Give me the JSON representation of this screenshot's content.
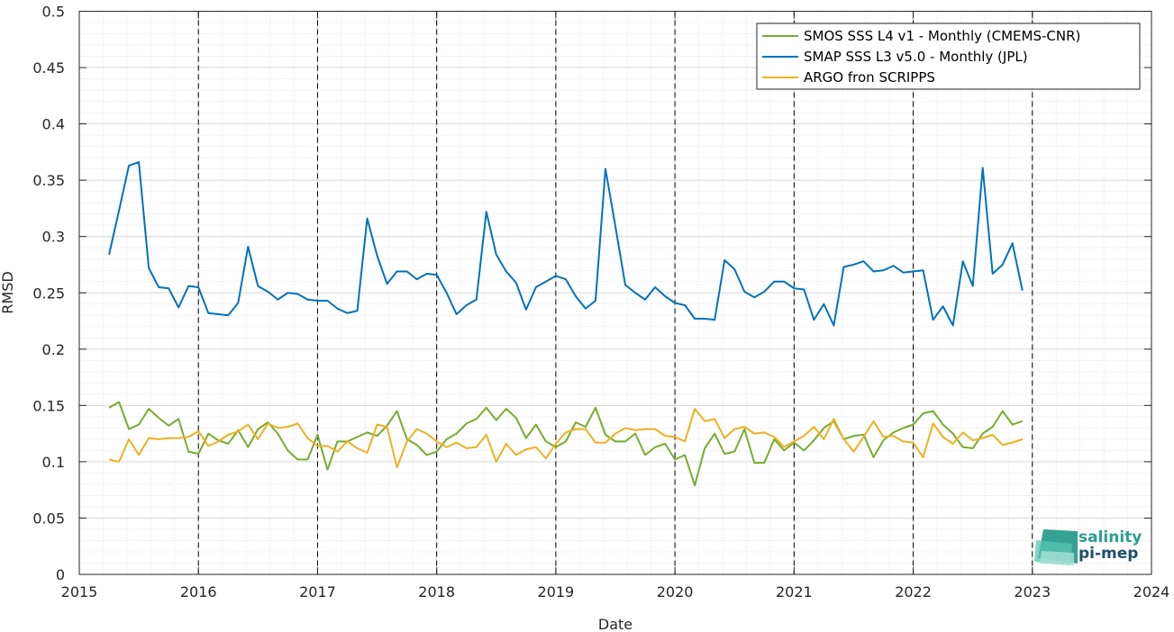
{
  "chart_data": {
    "type": "line",
    "xlabel": "Date",
    "ylabel": "RMSD",
    "xlim": [
      2015,
      2024
    ],
    "ylim": [
      0,
      0.5
    ],
    "x_ticks": [
      "2015",
      "2016",
      "2017",
      "2018",
      "2019",
      "2020",
      "2021",
      "2022",
      "2023",
      "2024"
    ],
    "y_ticks": [
      "0",
      "0.05",
      "0.1",
      "0.15",
      "0.2",
      "0.25",
      "0.3",
      "0.35",
      "0.4",
      "0.45",
      "0.5"
    ],
    "grid": true,
    "legend_position": "top-right",
    "year_markers": [
      "2016",
      "2017",
      "2018",
      "2019",
      "2020",
      "2021",
      "2022",
      "2023"
    ],
    "x": [
      "2015-04",
      "2015-05",
      "2015-06",
      "2015-07",
      "2015-08",
      "2015-09",
      "2015-10",
      "2015-11",
      "2015-12",
      "2016-01",
      "2016-02",
      "2016-03",
      "2016-04",
      "2016-05",
      "2016-06",
      "2016-07",
      "2016-08",
      "2016-09",
      "2016-10",
      "2016-11",
      "2016-12",
      "2017-01",
      "2017-02",
      "2017-03",
      "2017-04",
      "2017-05",
      "2017-06",
      "2017-07",
      "2017-08",
      "2017-09",
      "2017-10",
      "2017-11",
      "2017-12",
      "2018-01",
      "2018-02",
      "2018-03",
      "2018-04",
      "2018-05",
      "2018-06",
      "2018-07",
      "2018-08",
      "2018-09",
      "2018-10",
      "2018-11",
      "2018-12",
      "2019-01",
      "2019-02",
      "2019-03",
      "2019-04",
      "2019-05",
      "2019-06",
      "2019-07",
      "2019-08",
      "2019-09",
      "2019-10",
      "2019-11",
      "2019-12",
      "2020-01",
      "2020-02",
      "2020-03",
      "2020-04",
      "2020-05",
      "2020-06",
      "2020-07",
      "2020-08",
      "2020-09",
      "2020-10",
      "2020-11",
      "2020-12",
      "2021-01",
      "2021-02",
      "2021-03",
      "2021-04",
      "2021-05",
      "2021-06",
      "2021-07",
      "2021-08",
      "2021-09",
      "2021-10",
      "2021-11",
      "2021-12",
      "2022-01",
      "2022-02",
      "2022-03",
      "2022-04",
      "2022-05",
      "2022-06",
      "2022-07",
      "2022-08",
      "2022-09",
      "2022-10",
      "2022-11",
      "2022-12"
    ],
    "series": [
      {
        "name": "SMOS SSS L4 v1 - Monthly (CMEMS-CNR)",
        "color": "#77ac30",
        "values": [
          0.148,
          0.153,
          0.129,
          0.133,
          0.147,
          0.139,
          0.132,
          0.138,
          0.109,
          0.107,
          0.125,
          0.119,
          0.116,
          0.128,
          0.113,
          0.129,
          0.135,
          0.125,
          0.11,
          0.102,
          0.102,
          0.124,
          0.093,
          0.118,
          0.118,
          0.122,
          0.126,
          0.123,
          0.132,
          0.145,
          0.12,
          0.115,
          0.106,
          0.109,
          0.12,
          0.125,
          0.134,
          0.138,
          0.148,
          0.137,
          0.147,
          0.139,
          0.121,
          0.133,
          0.118,
          0.113,
          0.118,
          0.135,
          0.131,
          0.148,
          0.124,
          0.118,
          0.118,
          0.125,
          0.106,
          0.113,
          0.116,
          0.102,
          0.106,
          0.079,
          0.112,
          0.125,
          0.107,
          0.109,
          0.129,
          0.099,
          0.099,
          0.12,
          0.11,
          0.117,
          0.11,
          0.119,
          0.13,
          0.136,
          0.12,
          0.123,
          0.124,
          0.104,
          0.119,
          0.126,
          0.13,
          0.133,
          0.143,
          0.145,
          0.133,
          0.125,
          0.113,
          0.112,
          0.125,
          0.131,
          0.145,
          0.133,
          0.136
        ]
      },
      {
        "name": "SMAP SSS L3 v5.0 - Monthly (JPL)",
        "color": "#0072bd",
        "values": [
          0.284,
          0.323,
          0.363,
          0.366,
          0.272,
          0.255,
          0.254,
          0.237,
          0.256,
          0.255,
          0.232,
          0.231,
          0.23,
          0.241,
          0.291,
          0.256,
          0.251,
          0.244,
          0.25,
          0.249,
          0.244,
          0.243,
          0.243,
          0.236,
          0.232,
          0.234,
          0.316,
          0.283,
          0.258,
          0.269,
          0.269,
          0.262,
          0.267,
          0.266,
          0.25,
          0.231,
          0.239,
          0.244,
          0.322,
          0.284,
          0.269,
          0.259,
          0.235,
          0.255,
          0.26,
          0.265,
          0.262,
          0.247,
          0.236,
          0.243,
          0.36,
          0.309,
          0.257,
          0.25,
          0.244,
          0.255,
          0.247,
          0.241,
          0.239,
          0.227,
          0.227,
          0.226,
          0.279,
          0.271,
          0.251,
          0.246,
          0.251,
          0.26,
          0.26,
          0.254,
          0.253,
          0.226,
          0.24,
          0.221,
          0.273,
          0.275,
          0.278,
          0.269,
          0.27,
          0.274,
          0.268,
          0.269,
          0.27,
          0.226,
          0.238,
          0.221,
          0.278,
          0.256,
          0.361,
          0.267,
          0.275,
          0.294,
          0.252
        ]
      },
      {
        "name": "ARGO fron SCRIPPS",
        "color": "#edb120",
        "values": [
          0.102,
          0.1,
          0.12,
          0.106,
          0.121,
          0.12,
          0.121,
          0.121,
          0.122,
          0.127,
          0.114,
          0.118,
          0.124,
          0.127,
          0.133,
          0.12,
          0.134,
          0.13,
          0.131,
          0.134,
          0.121,
          0.114,
          0.114,
          0.109,
          0.118,
          0.112,
          0.108,
          0.133,
          0.131,
          0.095,
          0.118,
          0.129,
          0.125,
          0.118,
          0.113,
          0.117,
          0.112,
          0.113,
          0.124,
          0.1,
          0.116,
          0.106,
          0.111,
          0.113,
          0.103,
          0.116,
          0.126,
          0.129,
          0.129,
          0.117,
          0.117,
          0.125,
          0.13,
          0.128,
          0.129,
          0.129,
          0.123,
          0.122,
          0.118,
          0.147,
          0.136,
          0.138,
          0.121,
          0.129,
          0.131,
          0.125,
          0.126,
          0.122,
          0.113,
          0.118,
          0.123,
          0.131,
          0.12,
          0.138,
          0.12,
          0.109,
          0.122,
          0.136,
          0.122,
          0.123,
          0.118,
          0.117,
          0.104,
          0.134,
          0.122,
          0.116,
          0.126,
          0.119,
          0.121,
          0.124,
          0.115,
          0.117,
          0.12
        ]
      }
    ]
  },
  "logo": {
    "line1": "salinity",
    "line2": "pi-mep"
  }
}
